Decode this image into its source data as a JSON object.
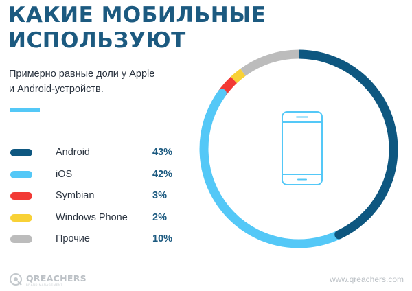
{
  "header": {
    "title_lines": [
      "КАКИЕ МОБИЛЬНЫЕ",
      "ИСПОЛЬЗУЮТ"
    ],
    "subtitle_lines": [
      "Примерно равные доли у Apple",
      "и Android-устройств."
    ]
  },
  "chart_data": {
    "type": "pie",
    "subtype": "donut",
    "start_angle_deg": 0,
    "direction": "clockwise",
    "segments": [
      {
        "label": "Android",
        "value": 43,
        "display": "43%",
        "color": "#0e5780"
      },
      {
        "label": "iOS",
        "value": 42,
        "display": "42%",
        "color": "#54c8f7"
      },
      {
        "label": "Symbian",
        "value": 3,
        "display": "3%",
        "color": "#f23a35"
      },
      {
        "label": "Windows Phone",
        "value": 2,
        "display": "2%",
        "color": "#f8d136"
      },
      {
        "label": "Прочие",
        "value": 10,
        "display": "10%",
        "color": "#bcbcbc"
      }
    ],
    "center_icon": "smartphone-icon",
    "legend_position": "left"
  },
  "footer": {
    "logo_text": "QREACHERS",
    "logo_tagline": "BRAND MANAGEMENT",
    "website": "www.qreachers.com"
  }
}
